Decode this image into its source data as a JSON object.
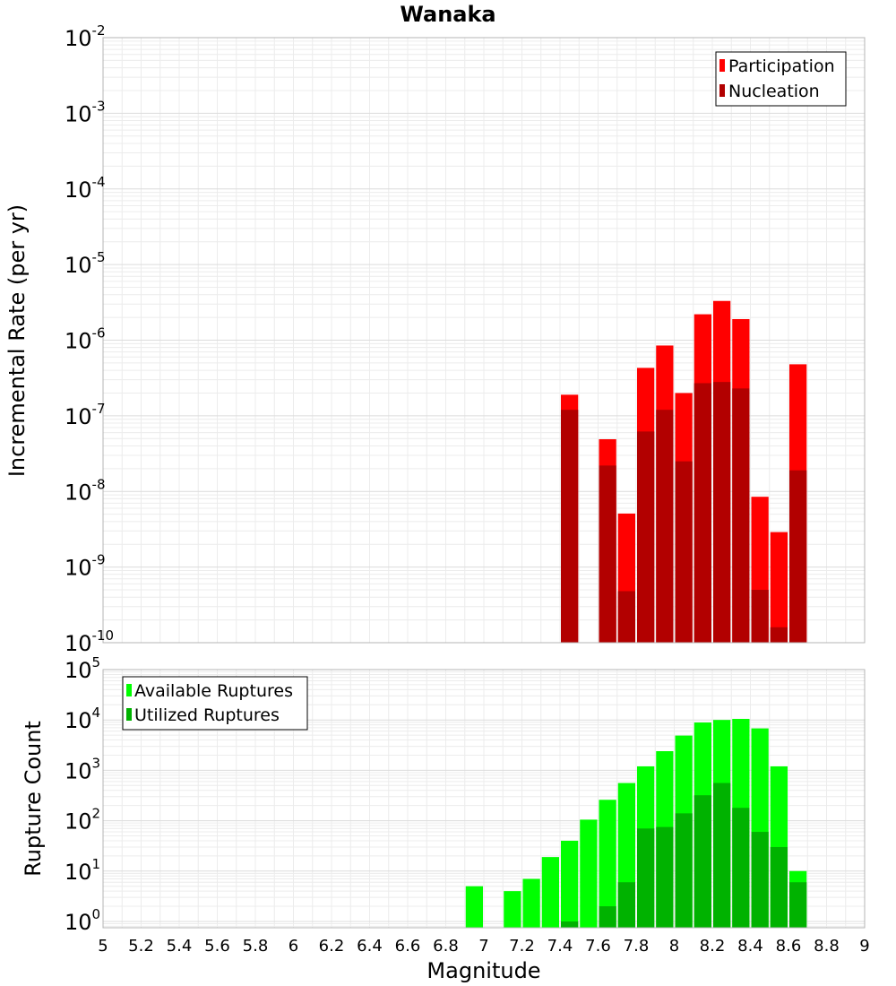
{
  "chart_data": [
    {
      "type": "bar",
      "title": "Wanaka",
      "xlabel": "",
      "ylabel": "Incremental Rate (per yr)",
      "x_scale": "linear",
      "y_scale": "log",
      "xlim": [
        5,
        9
      ],
      "ylim": [
        1e-10,
        0.01
      ],
      "grid": true,
      "legend_position": "top-right",
      "yticks": [
        {
          "base": "10",
          "exp": "-10"
        },
        {
          "base": "10",
          "exp": "-9"
        },
        {
          "base": "10",
          "exp": "-8"
        },
        {
          "base": "10",
          "exp": "-7"
        },
        {
          "base": "10",
          "exp": "-6"
        },
        {
          "base": "10",
          "exp": "-5"
        },
        {
          "base": "10",
          "exp": "-4"
        },
        {
          "base": "10",
          "exp": "-3"
        },
        {
          "base": "10",
          "exp": "-2"
        }
      ],
      "x": [
        7.45,
        7.55,
        7.65,
        7.75,
        7.85,
        7.95,
        8.05,
        8.15,
        8.25,
        8.35,
        8.45,
        8.55,
        8.65
      ],
      "series": [
        {
          "name": "Participation",
          "color": "#ff0000",
          "values": [
            1.9e-07,
            null,
            4.9e-08,
            5.1e-09,
            4.3e-07,
            8.5e-07,
            2e-07,
            2.2e-06,
            3.3e-06,
            1.9e-06,
            8.5e-09,
            2.9e-09,
            4.8e-07
          ]
        },
        {
          "name": "Nucleation",
          "color": "#b20000",
          "values": [
            1.2e-07,
            null,
            2.2e-08,
            4.8e-10,
            6.2e-08,
            1.2e-07,
            2.5e-08,
            2.7e-07,
            2.8e-07,
            2.3e-07,
            5e-10,
            1.6e-10,
            1.9e-08
          ]
        }
      ]
    },
    {
      "type": "bar",
      "title": "",
      "xlabel": "Magnitude",
      "ylabel": "Rupture Count",
      "x_scale": "linear",
      "y_scale": "log",
      "xlim": [
        5,
        9
      ],
      "ylim": [
        0.75,
        100000
      ],
      "grid": true,
      "legend_position": "top-left",
      "xticks": [
        "5",
        "5.2",
        "5.4",
        "5.6",
        "5.8",
        "6",
        "6.2",
        "6.4",
        "6.6",
        "6.8",
        "7",
        "7.2",
        "7.4",
        "7.6",
        "7.8",
        "8",
        "8.2",
        "8.4",
        "8.6",
        "8.8",
        "9"
      ],
      "yticks": [
        {
          "base": "10",
          "exp": "0"
        },
        {
          "base": "10",
          "exp": "1"
        },
        {
          "base": "10",
          "exp": "2"
        },
        {
          "base": "10",
          "exp": "3"
        },
        {
          "base": "10",
          "exp": "4"
        },
        {
          "base": "10",
          "exp": "5"
        }
      ],
      "x": [
        6.95,
        7.05,
        7.15,
        7.25,
        7.35,
        7.45,
        7.55,
        7.65,
        7.75,
        7.85,
        7.95,
        8.05,
        8.15,
        8.25,
        8.35,
        8.45,
        8.55,
        8.65
      ],
      "series": [
        {
          "name": "Available Ruptures",
          "color": "#00ff00",
          "values": [
            5,
            null,
            4,
            7,
            19,
            40,
            105,
            260,
            560,
            1200,
            2400,
            4900,
            8900,
            10000,
            10500,
            6800,
            1200,
            10
          ]
        },
        {
          "name": "Utilized Ruptures",
          "color": "#00b200",
          "values": [
            null,
            null,
            null,
            null,
            null,
            1,
            null,
            2,
            6,
            70,
            75,
            140,
            320,
            560,
            180,
            60,
            30,
            6
          ]
        }
      ]
    }
  ]
}
